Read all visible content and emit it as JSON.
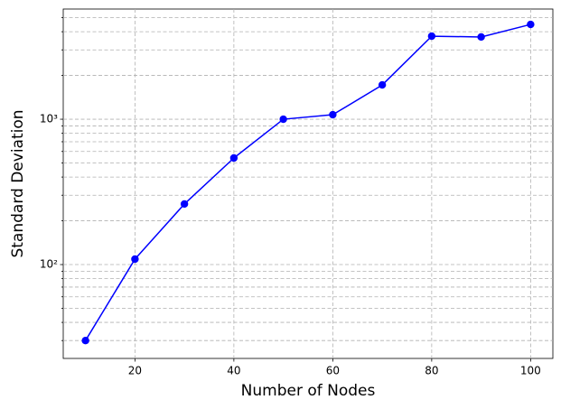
{
  "chart_data": {
    "type": "line",
    "x_label": "Number of Nodes",
    "y_label": "Standard Deviation",
    "x": [
      10,
      20,
      30,
      40,
      50,
      60,
      70,
      80,
      90,
      100
    ],
    "series": [
      {
        "name": "Standard Deviation",
        "color": "#0000ff",
        "marker": "circle",
        "values": [
          30,
          109,
          261,
          541,
          1000,
          1074,
          1721,
          3727,
          3680,
          4488
        ]
      }
    ],
    "xlim": [
      5.5,
      104.5
    ],
    "xticks": [
      20,
      40,
      60,
      80,
      100
    ],
    "ylim": [
      22.6,
      5730
    ],
    "y_scale": "log",
    "yticks": [
      {
        "value": 100,
        "label": "10²"
      },
      {
        "value": 1000,
        "label": "10³"
      }
    ],
    "yminorticks": [
      30,
      40,
      50,
      60,
      70,
      80,
      90,
      200,
      300,
      400,
      500,
      600,
      700,
      800,
      900,
      2000,
      3000,
      4000,
      5000
    ],
    "grid": true
  }
}
